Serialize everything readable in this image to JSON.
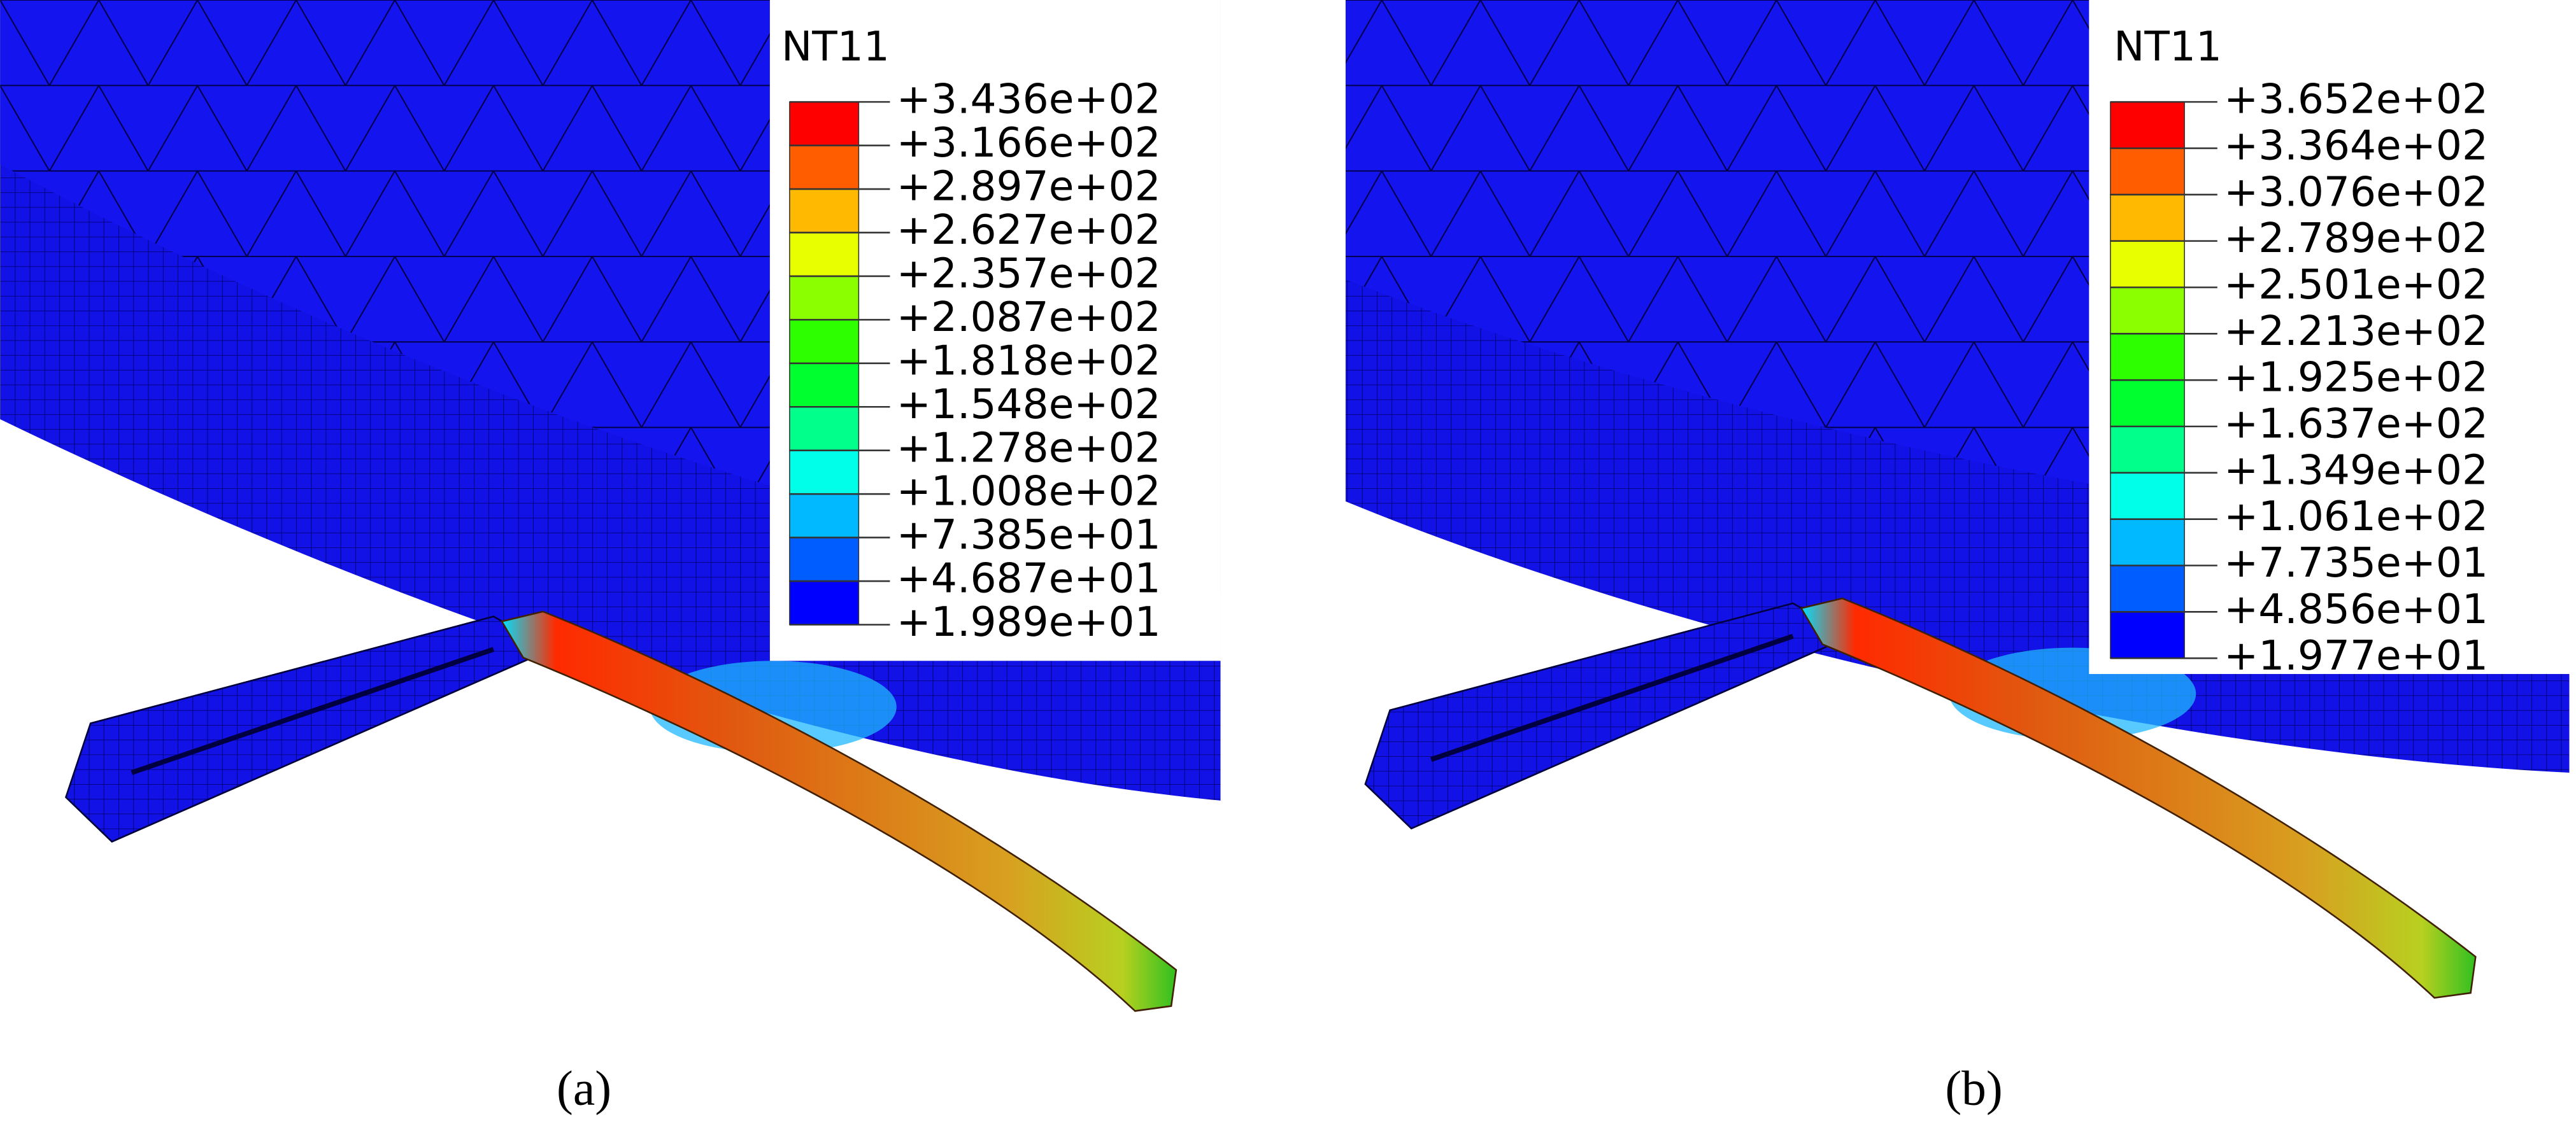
{
  "panels": [
    {
      "legend_title": "NT11",
      "legend_labels": [
        "+3.436e+02",
        "+3.166e+02",
        "+2.897e+02",
        "+2.627e+02",
        "+2.357e+02",
        "+2.087e+02",
        "+1.818e+02",
        "+1.548e+02",
        "+1.278e+02",
        "+1.008e+02",
        "+7.385e+01",
        "+4.687e+01",
        "+1.989e+01"
      ],
      "caption": "(a)"
    },
    {
      "legend_title": "NT11",
      "legend_labels": [
        "+3.652e+02",
        "+3.364e+02",
        "+3.076e+02",
        "+2.789e+02",
        "+2.501e+02",
        "+2.213e+02",
        "+1.925e+02",
        "+1.637e+02",
        "+1.349e+02",
        "+1.061e+02",
        "+7.735e+01",
        "+4.856e+01",
        "+1.977e+01"
      ],
      "caption": "(b)"
    }
  ]
}
